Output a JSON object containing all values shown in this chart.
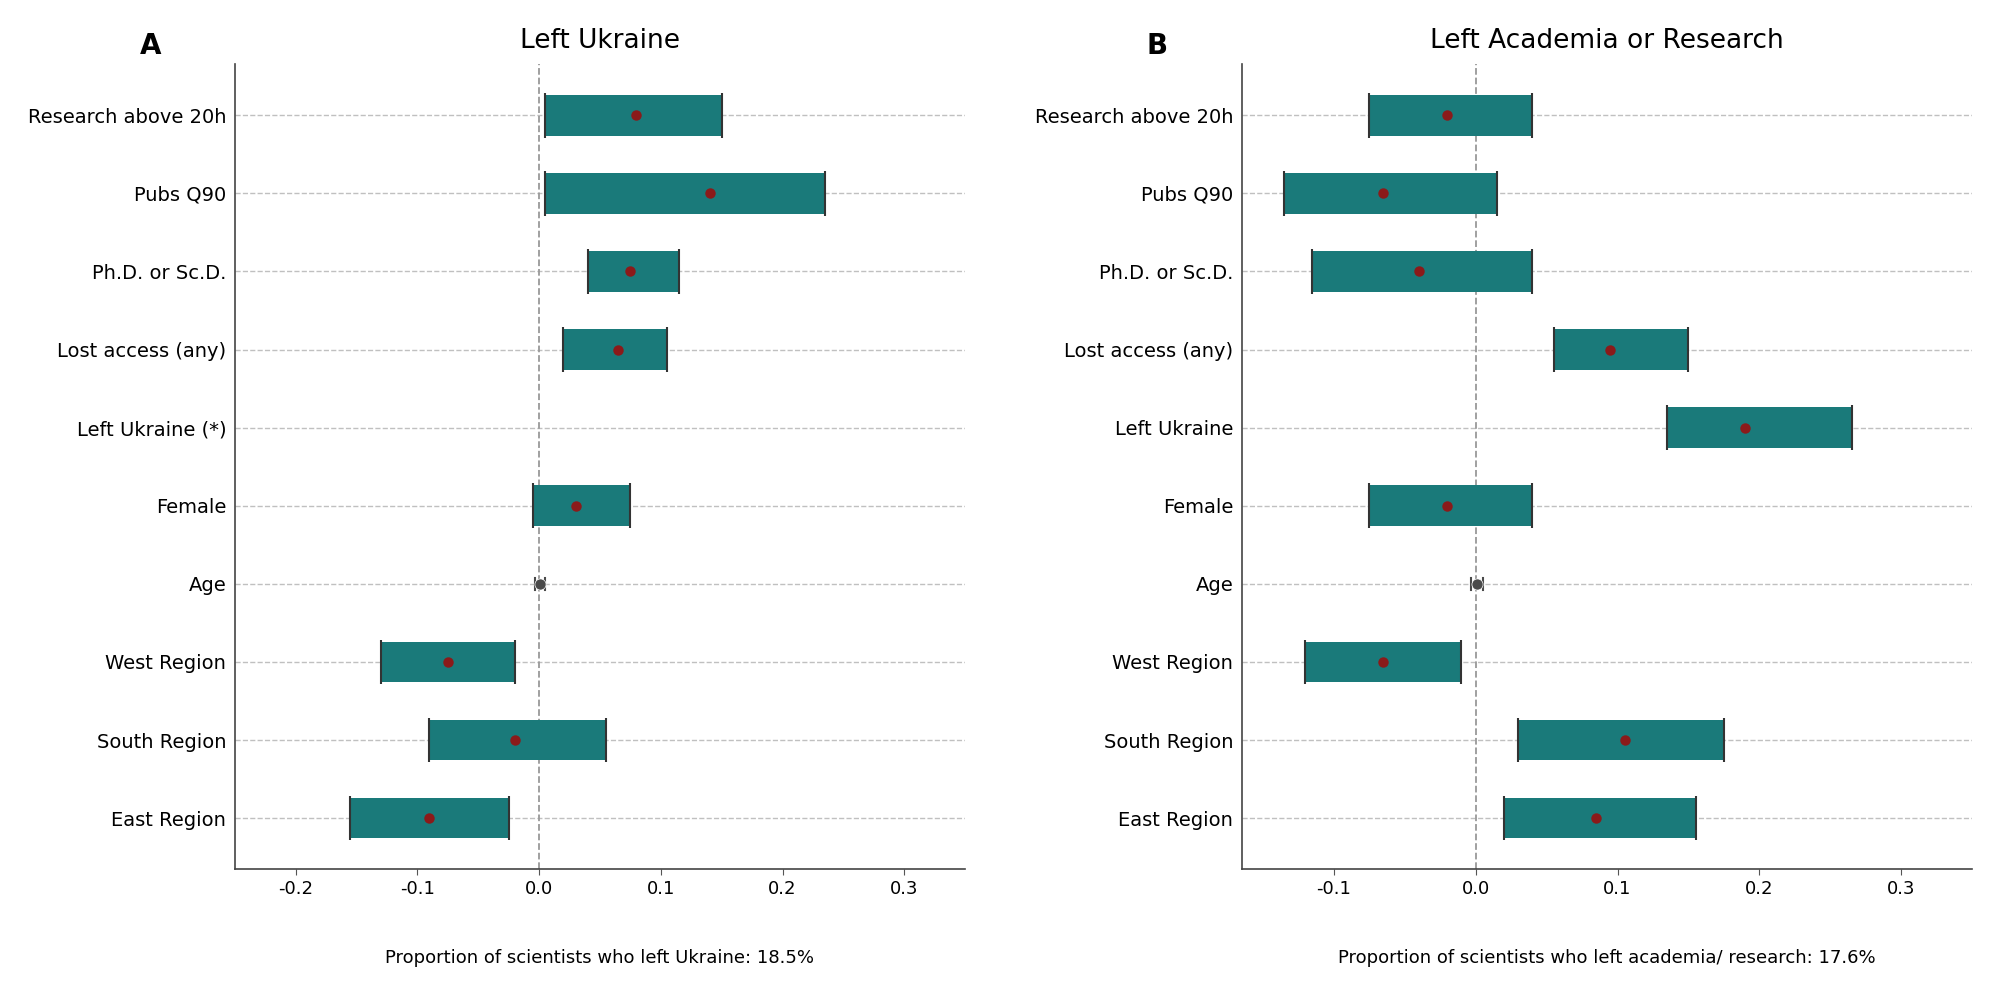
{
  "panel_A": {
    "title": "Left Ukraine",
    "label": "A",
    "subtitle": "Proportion of scientists who left Ukraine: 18.5%",
    "categories": [
      "Research above 20h",
      "Pubs Q90",
      "Ph.D. or Sc.D.",
      "Lost access (any)",
      "Left Ukraine (*)",
      "Female",
      "Age",
      "West Region",
      "South Region",
      "East Region"
    ],
    "coef": [
      0.08,
      0.14,
      0.075,
      0.065,
      null,
      0.03,
      0.001,
      -0.075,
      -0.02,
      -0.09
    ],
    "ci_low": [
      0.005,
      0.005,
      0.04,
      0.02,
      null,
      -0.005,
      -0.003,
      -0.13,
      -0.09,
      -0.155
    ],
    "ci_high": [
      0.15,
      0.235,
      0.115,
      0.105,
      null,
      0.075,
      0.005,
      -0.02,
      0.055,
      -0.025
    ],
    "xlim": [
      -0.25,
      0.35
    ],
    "xticks": [
      -0.2,
      -0.1,
      0.0,
      0.1,
      0.2,
      0.3
    ]
  },
  "panel_B": {
    "title": "Left Academia or Research",
    "label": "B",
    "subtitle": "Proportion of scientists who left academia/ research: 17.6%",
    "categories": [
      "Research above 20h",
      "Pubs Q90",
      "Ph.D. or Sc.D.",
      "Lost access (any)",
      "Left Ukraine",
      "Female",
      "Age",
      "West Region",
      "South Region",
      "East Region"
    ],
    "coef": [
      -0.02,
      -0.065,
      -0.04,
      0.095,
      0.19,
      -0.02,
      0.001,
      -0.065,
      0.105,
      0.085
    ],
    "ci_low": [
      -0.075,
      -0.135,
      -0.115,
      0.055,
      0.135,
      -0.075,
      -0.003,
      -0.12,
      0.03,
      0.02
    ],
    "ci_high": [
      0.04,
      0.015,
      0.04,
      0.15,
      0.265,
      0.04,
      0.005,
      -0.01,
      0.175,
      0.155
    ],
    "xlim": [
      -0.165,
      0.35
    ],
    "xticks": [
      -0.1,
      0.0,
      0.1,
      0.2,
      0.3
    ]
  },
  "bar_color": "#1a7a7a",
  "dot_color": "#8b1a1a",
  "age_dot_color": "#4a4a4a",
  "bar_height": 0.52,
  "background_color": "#ffffff",
  "grid_color": "#c0c0c0",
  "zero_line_color": "#999999",
  "title_fontsize": 19,
  "label_fontsize": 20,
  "tick_fontsize": 13,
  "category_fontsize": 14,
  "subtitle_fontsize": 13
}
